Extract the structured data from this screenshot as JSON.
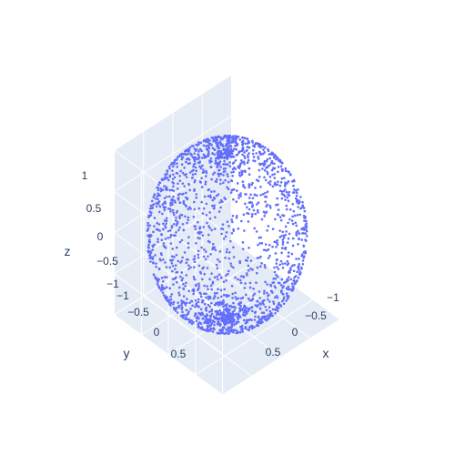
{
  "chart_data": {
    "type": "scatter",
    "dimensions": 3,
    "title": "",
    "xlabel": "x",
    "ylabel": "y",
    "zlabel": "z",
    "xlim": [
      -1,
      1
    ],
    "ylim": [
      -1,
      1
    ],
    "zlim": [
      -1,
      1
    ],
    "x_ticks": [
      "−1",
      "−0.5",
      "0",
      "0.5"
    ],
    "y_ticks": [
      "−1",
      "−0.5",
      "0",
      "0.5"
    ],
    "z_ticks": [
      "−1",
      "−0.5",
      "0",
      "0.5",
      "1"
    ],
    "grid": true,
    "pane_color": "#e5ecf6",
    "marker_color": "#636efa",
    "series": [
      {
        "name": "",
        "description": "approximately 2000 points sampled on the surface of the unit sphere, denser near the poles",
        "points": [
          [
            0.0,
            0.0,
            1.0
          ],
          [
            0.31,
            0.12,
            0.94
          ],
          [
            -0.28,
            0.22,
            0.93
          ],
          [
            0.05,
            -0.36,
            0.93
          ],
          [
            0.55,
            0.35,
            0.76
          ],
          [
            -0.61,
            -0.18,
            0.77
          ],
          [
            0.12,
            0.68,
            0.72
          ],
          [
            -0.2,
            -0.66,
            0.72
          ],
          [
            0.82,
            -0.1,
            0.56
          ],
          [
            -0.78,
            0.3,
            0.55
          ],
          [
            0.35,
            -0.75,
            0.56
          ],
          [
            -0.3,
            0.78,
            0.55
          ],
          [
            0.95,
            0.25,
            0.18
          ],
          [
            -0.92,
            -0.33,
            0.2
          ],
          [
            0.2,
            0.96,
            0.19
          ],
          [
            -0.3,
            -0.93,
            0.2
          ],
          [
            0.99,
            -0.05,
            -0.1
          ],
          [
            -0.98,
            0.12,
            -0.12
          ],
          [
            0.08,
            -0.99,
            -0.1
          ],
          [
            -0.1,
            0.99,
            -0.1
          ],
          [
            0.8,
            0.45,
            -0.4
          ],
          [
            -0.7,
            -0.58,
            -0.42
          ],
          [
            0.5,
            -0.76,
            -0.41
          ],
          [
            -0.55,
            0.72,
            -0.42
          ],
          [
            0.6,
            0.1,
            -0.79
          ],
          [
            -0.55,
            0.25,
            -0.8
          ],
          [
            0.1,
            0.6,
            -0.79
          ],
          [
            0.05,
            -0.58,
            -0.81
          ],
          [
            0.22,
            -0.15,
            -0.96
          ],
          [
            -0.2,
            -0.1,
            -0.97
          ],
          [
            0.0,
            0.0,
            -1.0
          ],
          [
            0.1,
            0.2,
            -0.97
          ]
        ]
      }
    ]
  }
}
